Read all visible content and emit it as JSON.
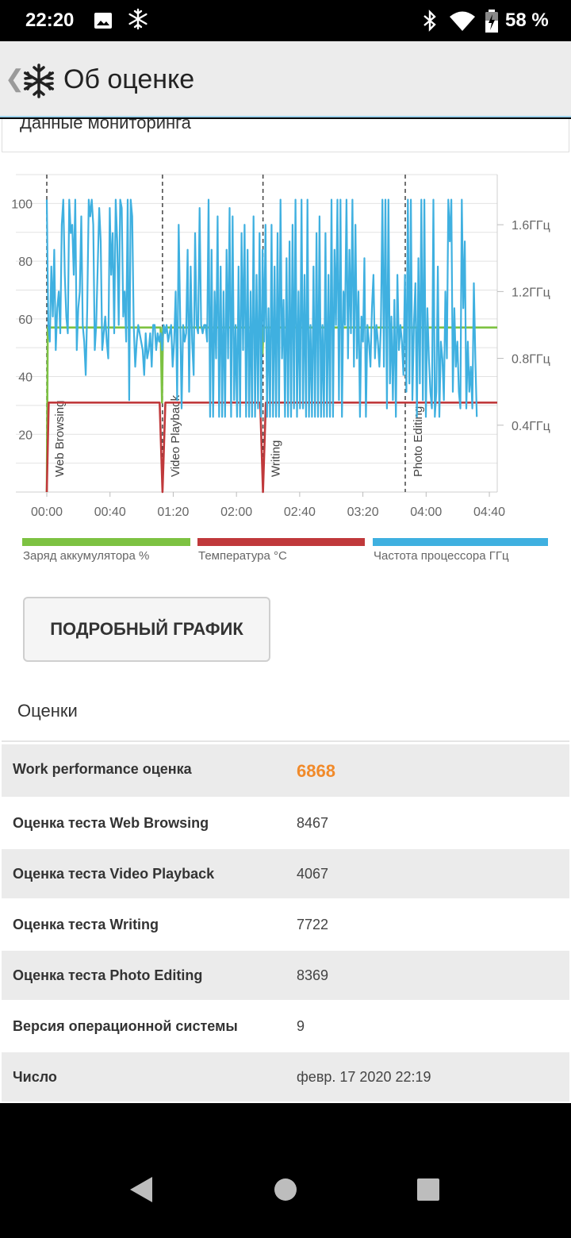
{
  "status_bar": {
    "time": "22:20",
    "battery_percent": "58 %",
    "icons": [
      "image-icon",
      "snowflake-icon",
      "bluetooth-icon",
      "wifi-icon",
      "battery-charging-icon"
    ]
  },
  "app_bar": {
    "title": "Об оценке",
    "back_icon": "chevron-left-icon",
    "logo_icon": "snowflake-logo-icon"
  },
  "monitoring": {
    "title": "Данные мониторинга"
  },
  "chart_data": {
    "type": "line",
    "x_range": [
      0,
      4.75
    ],
    "x_unit": "hours",
    "x_tick_labels": [
      "00:00",
      "00:40",
      "01:20",
      "02:00",
      "02:40",
      "03:20",
      "04:00",
      "04:40"
    ],
    "x_tick_values": [
      0,
      0.6667,
      1.3333,
      2.0,
      2.6667,
      3.3333,
      4.0,
      4.6667
    ],
    "y_left_ticks": [
      20,
      40,
      60,
      80,
      100
    ],
    "y_left_range": [
      0,
      110
    ],
    "y_right_ticks": [
      "0.4ГГц",
      "0.8ГГц",
      "1.2ГГц",
      "1.6ГГц"
    ],
    "y_right_values": [
      0.4,
      0.8,
      1.2,
      1.6
    ],
    "y_right_range": [
      0,
      1.9
    ],
    "grid": true,
    "phase_markers": [
      {
        "label": "Web Browsing",
        "x": 0.0
      },
      {
        "label": "Video Playback",
        "x": 1.22
      },
      {
        "label": "Writing",
        "x": 2.28
      },
      {
        "label": "Photo Editing",
        "x": 3.78
      }
    ],
    "series": [
      {
        "name": "Заряд аккумулятора %",
        "color": "#7dc242",
        "axis": "left",
        "points": [
          [
            0.0,
            0
          ],
          [
            0.01,
            57
          ],
          [
            1.2,
            57
          ],
          [
            1.215,
            31
          ],
          [
            1.225,
            57
          ],
          [
            2.265,
            57
          ],
          [
            2.275,
            48
          ],
          [
            2.285,
            57
          ],
          [
            4.75,
            57
          ]
        ]
      },
      {
        "name": "Температура °C",
        "color": "#c0393b",
        "axis": "left",
        "points": [
          [
            0.0,
            0
          ],
          [
            0.02,
            31
          ],
          [
            1.19,
            31
          ],
          [
            1.22,
            0
          ],
          [
            1.25,
            31
          ],
          [
            2.25,
            31
          ],
          [
            2.28,
            0
          ],
          [
            2.31,
            31
          ],
          [
            4.75,
            31
          ]
        ]
      },
      {
        "name": "Частота процессора ГГц",
        "color": "#3fb0e0",
        "axis": "right",
        "x_start": 0.0,
        "x_step": 0.0158,
        "values": [
          1.75,
          1.0,
          0.9,
          1.35,
          1.05,
          1.45,
          0.85,
          1.1,
          1.2,
          0.95,
          1.6,
          1.75,
          1.3,
          1.05,
          0.95,
          1.75,
          1.55,
          1.6,
          1.3,
          1.75,
          0.85,
          1.1,
          1.2,
          1.65,
          1.0,
          0.9,
          0.7,
          1.1,
          1.75,
          1.65,
          1.75,
          1.6,
          0.85,
          1.0,
          1.35,
          1.7,
          1.5,
          0.85,
          0.95,
          1.05,
          0.9,
          0.8,
          1.7,
          1.3,
          1.55,
          0.95,
          1.75,
          1.5,
          1.0,
          1.75,
          1.7,
          1.05,
          1.2,
          0.9,
          1.75,
          0.55,
          1.75,
          1.65,
          1.0,
          0.75,
          0.9,
          1.0,
          0.95,
          0.9,
          0.85,
          0.7,
          0.95,
          0.8,
          0.85,
          0.95,
          0.75,
          1.0,
          1.0,
          0.85,
          0.95,
          0.9,
          0.95,
          0.85,
          1.0,
          0.95,
          1.0,
          0.9,
          0.95,
          1.0,
          0.75,
          0.9,
          1.2,
          0.55,
          1.6,
          1.05,
          0.5,
          1.0,
          0.9,
          0.95,
          1.45,
          0.6,
          1.35,
          0.9,
          0.7,
          1.55,
          1.0,
          0.95,
          1.7,
          1.0,
          0.95,
          1.0,
          1.0,
          0.9,
          1.75,
          0.45,
          1.45,
          0.45,
          1.2,
          0.8,
          1.65,
          0.45,
          1.35,
          0.45,
          1.2,
          0.45,
          1.45,
          0.8,
          1.7,
          0.45,
          1.65,
          0.55,
          1.0,
          0.45,
          1.35,
          0.45,
          1.55,
          0.85,
          1.6,
          0.45,
          1.45,
          0.45,
          1.2,
          0.45,
          1.65,
          0.45,
          1.3,
          0.5,
          1.55,
          0.45,
          1.45,
          0.9,
          1.6,
          0.45,
          1.1,
          0.45,
          1.6,
          0.45,
          1.35,
          0.45,
          1.55,
          0.45,
          1.75,
          0.8,
          1.15,
          0.45,
          1.4,
          0.45,
          1.5,
          0.45,
          1.6,
          0.5,
          1.75,
          0.45,
          1.2,
          0.5,
          1.75,
          0.5,
          1.3,
          0.45,
          1.75,
          0.45,
          1.0,
          0.45,
          1.35,
          0.45,
          1.55,
          0.45,
          1.65,
          0.45,
          1.0,
          0.45,
          1.55,
          0.45,
          1.3,
          0.45,
          1.75,
          0.45,
          1.45,
          1.0,
          1.75,
          0.55,
          1.75,
          0.45,
          1.2,
          1.0,
          1.75,
          0.8,
          1.45,
          0.95,
          1.75,
          0.75,
          1.6,
          0.8,
          1.2,
          0.45,
          1.05,
          0.9,
          1.4,
          0.45,
          1.0,
          0.9,
          0.75,
          1.1,
          1.3,
          0.8,
          1.0,
          0.9,
          0.75,
          1.0,
          1.75,
          0.75,
          1.75,
          0.5,
          1.75,
          0.65,
          1.05,
          0.55,
          1.15,
          0.45,
          1.3,
          0.85,
          1.0,
          0.9,
          0.7,
          1.3,
          0.6,
          1.75,
          0.65,
          1.75,
          0.55,
          1.0,
          1.25,
          0.45,
          1.4,
          0.65,
          1.75,
          0.55,
          1.75,
          0.45,
          1.1,
          0.8,
          0.6,
          0.5,
          1.75,
          0.45,
          0.6,
          1.35,
          0.45,
          0.9,
          0.8,
          0.55,
          1.2,
          0.8,
          1.75,
          1.5,
          1.75,
          0.6,
          1.1,
          0.75,
          0.9,
          0.6,
          0.5,
          1.75,
          1.1,
          1.5,
          0.5,
          0.9,
          0.6,
          0.75,
          0.5,
          1.25,
          0.8,
          0.45
        ]
      }
    ]
  },
  "legend": [
    {
      "label": "Заряд аккумулятора %",
      "color": "#7dc242"
    },
    {
      "label": "Температура °C",
      "color": "#c0393b"
    },
    {
      "label": "Частота процессора ГГц",
      "color": "#3fb0e0"
    }
  ],
  "detail_button": {
    "label": "ПОДРОБНЫЙ ГРАФИК"
  },
  "scores": {
    "title": "Оценки",
    "rows": [
      {
        "label": "Work performance оценка",
        "value": "6868"
      },
      {
        "label": "Оценка теста Web Browsing",
        "value": "8467"
      },
      {
        "label": "Оценка теста Video Playback",
        "value": "4067"
      },
      {
        "label": "Оценка теста Writing",
        "value": "7722"
      },
      {
        "label": "Оценка теста Photo Editing",
        "value": "8369"
      },
      {
        "label": "Версия операционной системы",
        "value": "9"
      },
      {
        "label": "Число",
        "value": "февр. 17 2020 22:19"
      }
    ]
  },
  "nav_bar": {
    "icons": [
      "back-triangle-icon",
      "home-circle-icon",
      "recents-square-icon"
    ]
  }
}
